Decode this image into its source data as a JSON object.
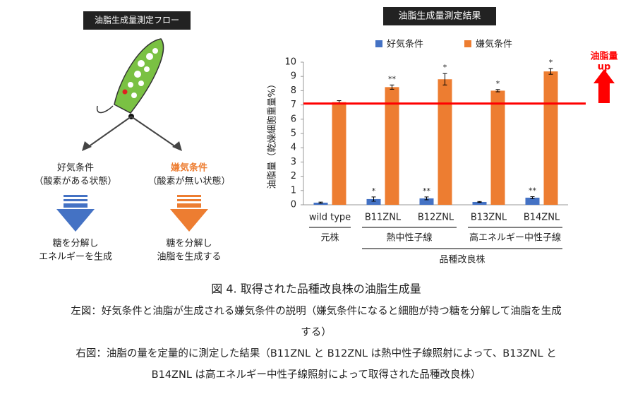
{
  "diagram": {
    "title": "油脂生成量測定フロー",
    "branches": [
      {
        "condition": "好気条件",
        "note": "（酸素がある状態）",
        "result": [
          "糖を分解し",
          "エネルギーを生成"
        ]
      },
      {
        "condition": "嫌気条件",
        "note": "（酸素が無い状態）",
        "result": [
          "糖を分解し",
          "油脂を生成する"
        ]
      }
    ]
  },
  "chart_data": {
    "type": "bar",
    "title": "油脂生成量測定結果",
    "y_label": "油脂量（乾燥細胞重量%）",
    "categories": [
      "wild type",
      "B11ZNL",
      "B12ZNL",
      "B13ZNL",
      "B14ZNL"
    ],
    "series": [
      {
        "name": "好気条件",
        "color": "#4472c4",
        "values": [
          0.15,
          0.4,
          0.45,
          0.2,
          0.5
        ],
        "errors": [
          0.04,
          0.15,
          0.1,
          0.03,
          0.07
        ],
        "significance": [
          null,
          "*",
          "**",
          null,
          "**"
        ]
      },
      {
        "name": "嫌気条件",
        "color": "#ed7d31",
        "values": [
          7.2,
          8.25,
          8.8,
          8.0,
          9.35
        ],
        "errors": [
          0.1,
          0.15,
          0.4,
          0.08,
          0.2
        ],
        "significance": [
          null,
          "**",
          "*",
          "*",
          "*"
        ]
      }
    ],
    "ylim": [
      0,
      10
    ],
    "yticks": [
      0,
      1,
      2,
      3,
      4,
      5,
      6,
      7,
      8,
      9,
      10
    ],
    "reference_line": {
      "value": 7.1,
      "color": "#ff0000",
      "label": [
        "油脂量",
        "up"
      ]
    },
    "groups": [
      {
        "label": "元株",
        "members": [
          "wild type"
        ]
      },
      {
        "label": "熱中性子線",
        "members": [
          "B11ZNL",
          "B12ZNL"
        ]
      },
      {
        "label": "高エネルギー中性子線",
        "members": [
          "B13ZNL",
          "B14ZNL"
        ]
      }
    ],
    "supergroups": [
      {
        "label": "品種改良株",
        "members": [
          "B11ZNL",
          "B12ZNL",
          "B13ZNL",
          "B14ZNL"
        ]
      }
    ]
  },
  "caption": {
    "title": "図 4. 取得された品種改良株の油脂生成量",
    "left": [
      "左図：好気条件と油脂が生成される嫌気条件の説明（嫌気条件になると細胞が持つ糖を分解して油脂を生成",
      "する）"
    ],
    "right": [
      "右図：油脂の量を定量的に測定した結果（B11ZNL と B12ZNL は熱中性子線照射によって、B13ZNL と",
      "B14ZNL は高エネルギー中性子線照射によって取得された品種改良株）"
    ]
  }
}
